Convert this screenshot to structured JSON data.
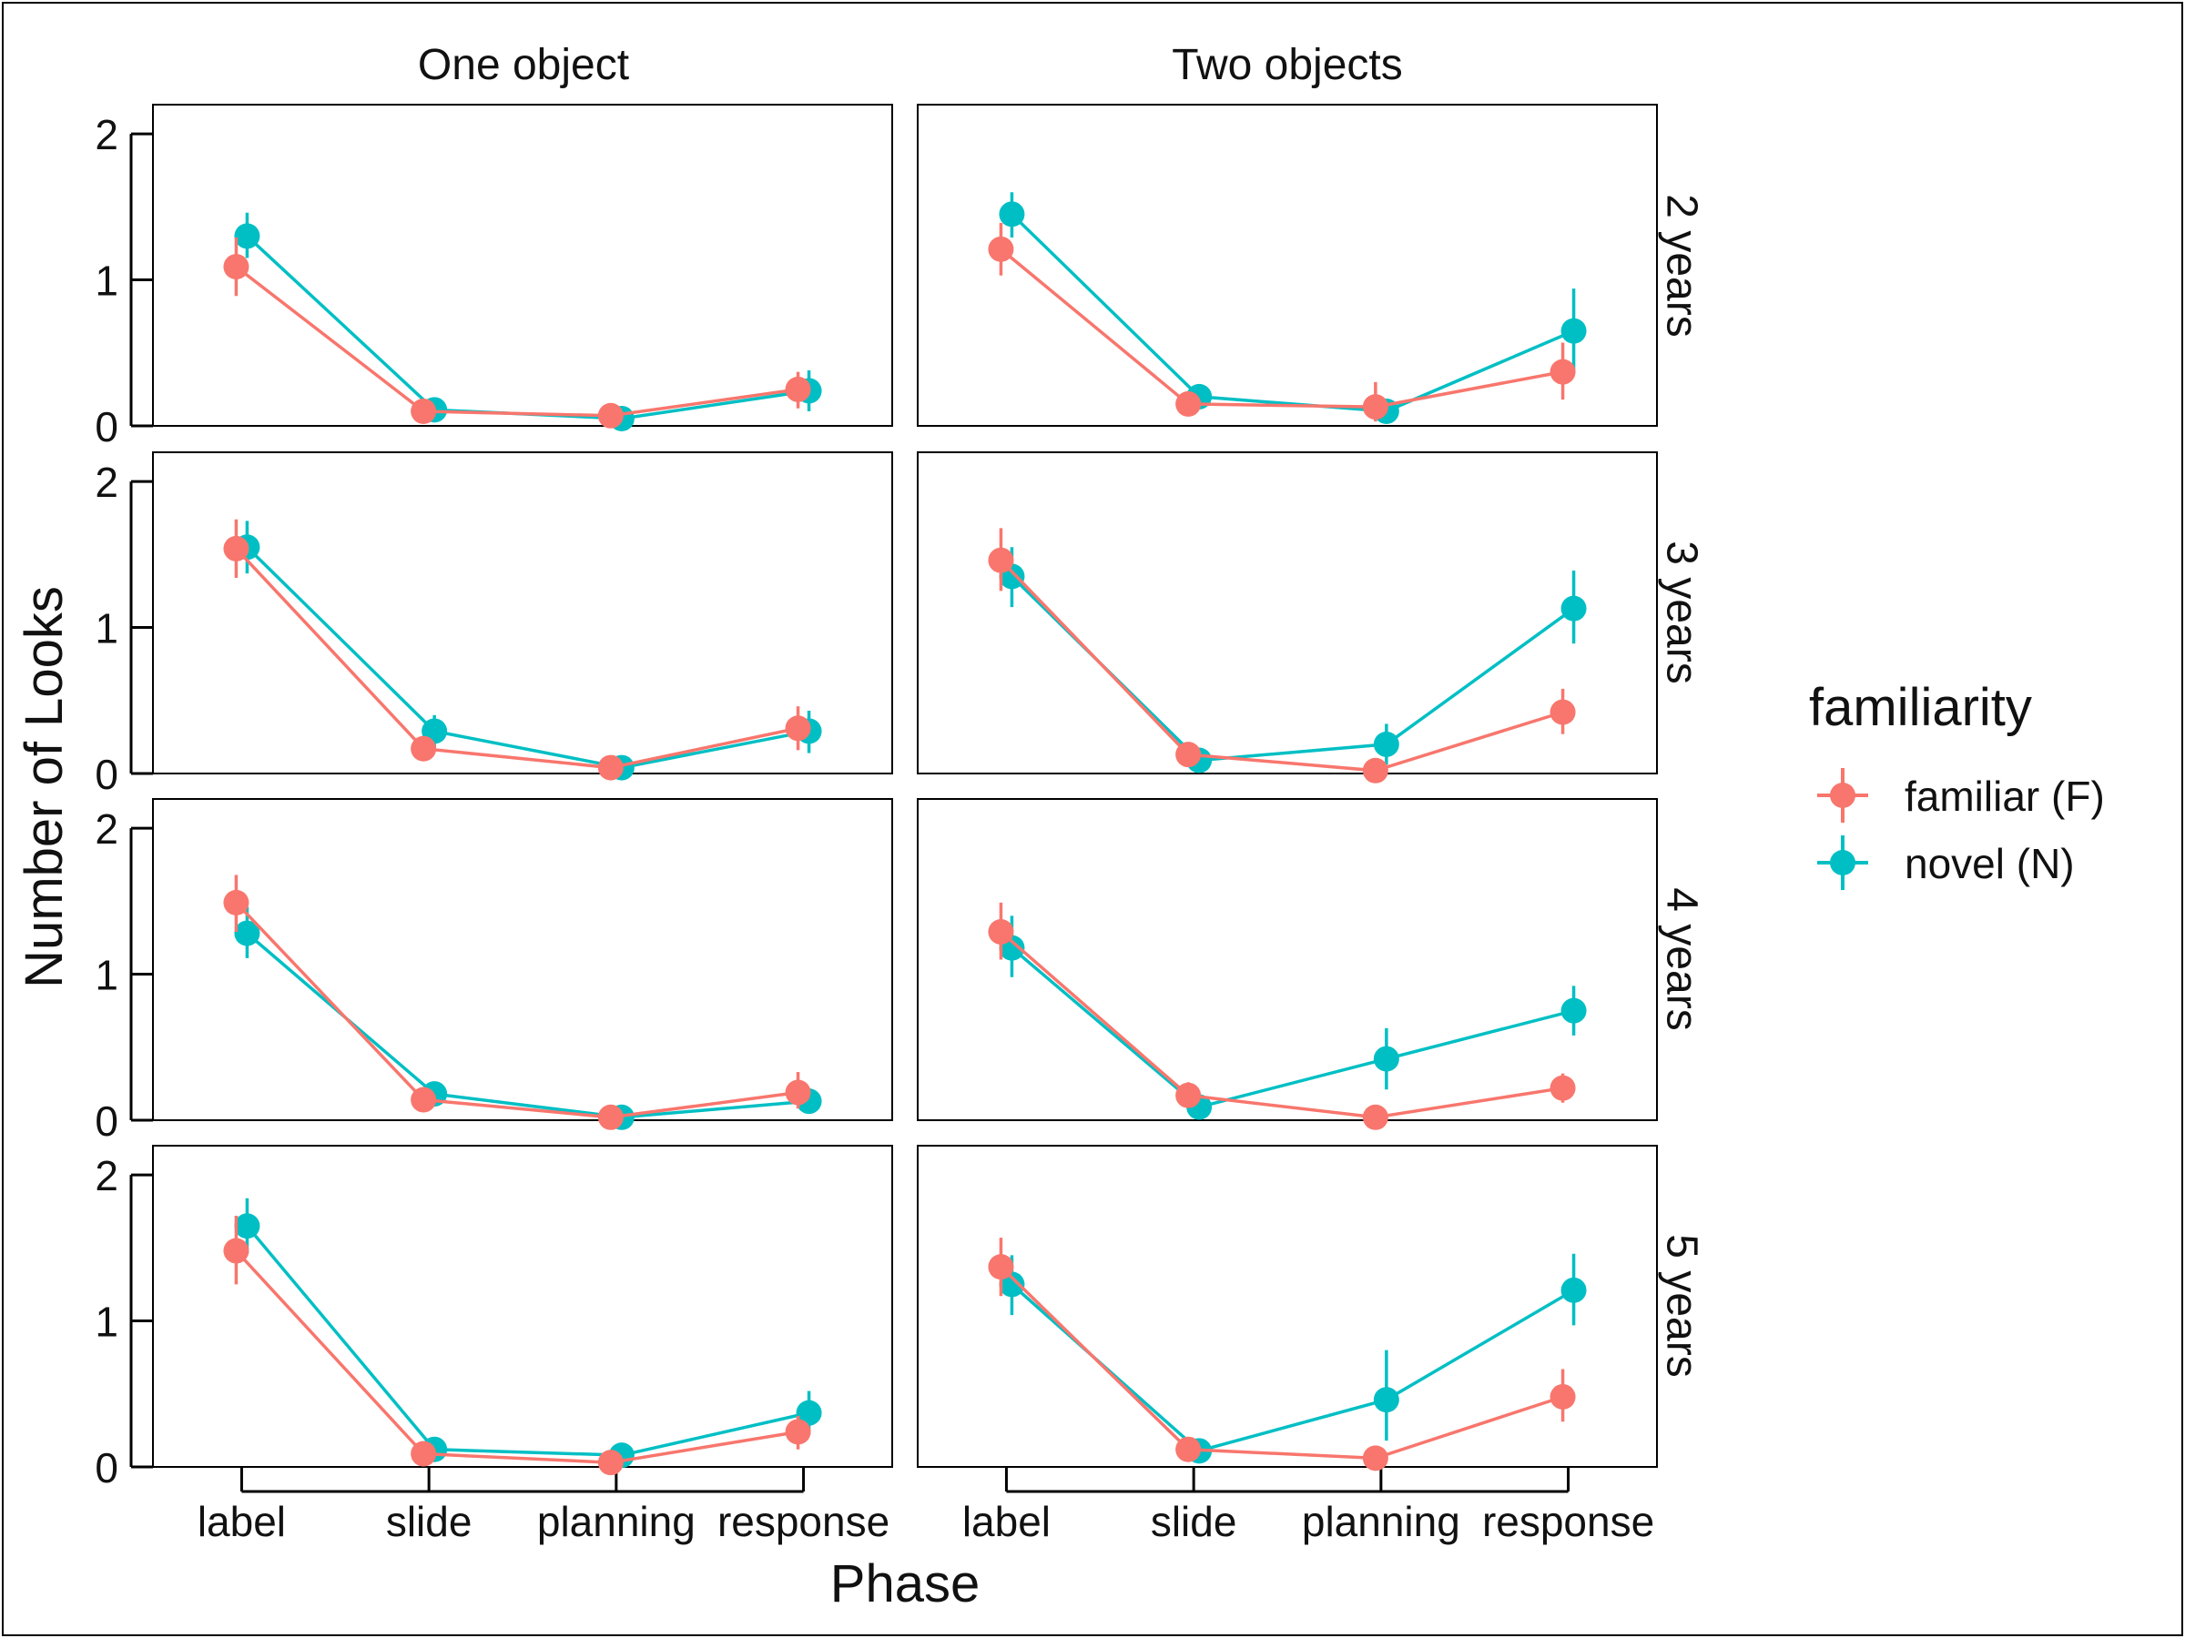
{
  "chart_data": {
    "type": "line",
    "title": "",
    "xlabel": "Phase",
    "ylabel": "Number of Looks",
    "x": [
      "label",
      "slide",
      "planning",
      "response"
    ],
    "ylim": [
      0,
      2.2
    ],
    "yticks": [
      0,
      1,
      2
    ],
    "grid": false,
    "legend": {
      "title": "familiarity",
      "placement": "right",
      "entries": [
        "familiar (F)",
        "novel (N)"
      ]
    },
    "colors": {
      "familiar (F)": "#F8766D",
      "novel (N)": "#00BFC4"
    },
    "facet_columns": [
      "One object",
      "Two objects"
    ],
    "facet_rows": [
      "2 years",
      "3 years",
      "4 years",
      "5 years"
    ],
    "panels": [
      {
        "column": "One object",
        "row": "2 years",
        "series": [
          {
            "name": "familiar (F)",
            "values": [
              1.09,
              0.1,
              0.07,
              0.25
            ],
            "err": [
              [
                0.89,
                1.29
              ],
              [
                0.05,
                0.15
              ],
              [
                0.03,
                0.11
              ],
              [
                0.12,
                0.37
              ]
            ]
          },
          {
            "name": "novel (N)",
            "values": [
              1.3,
              0.11,
              0.05,
              0.24
            ],
            "err": [
              [
                1.15,
                1.46
              ],
              [
                0.06,
                0.16
              ],
              [
                0.01,
                0.09
              ],
              [
                0.1,
                0.38
              ]
            ]
          }
        ]
      },
      {
        "column": "Two objects",
        "row": "2 years",
        "series": [
          {
            "name": "familiar (F)",
            "values": [
              1.21,
              0.15,
              0.13,
              0.37
            ],
            "err": [
              [
                1.03,
                1.39
              ],
              [
                0.1,
                0.2
              ],
              [
                0.03,
                0.3
              ],
              [
                0.18,
                0.57
              ]
            ]
          },
          {
            "name": "novel (N)",
            "values": [
              1.45,
              0.2,
              0.1,
              0.65
            ],
            "err": [
              [
                1.29,
                1.6
              ],
              [
                0.14,
                0.25
              ],
              [
                0.05,
                0.16
              ],
              [
                0.38,
                0.94
              ]
            ]
          }
        ]
      },
      {
        "column": "One object",
        "row": "3 years",
        "series": [
          {
            "name": "familiar (F)",
            "values": [
              1.54,
              0.17,
              0.04,
              0.31
            ],
            "err": [
              [
                1.34,
                1.74
              ],
              [
                0.1,
                0.23
              ],
              [
                0.01,
                0.07
              ],
              [
                0.16,
                0.46
              ]
            ]
          },
          {
            "name": "novel (N)",
            "values": [
              1.55,
              0.29,
              0.04,
              0.29
            ],
            "err": [
              [
                1.37,
                1.73
              ],
              [
                0.18,
                0.4
              ],
              [
                0.01,
                0.07
              ],
              [
                0.14,
                0.43
              ]
            ]
          }
        ]
      },
      {
        "column": "Two objects",
        "row": "3 years",
        "series": [
          {
            "name": "familiar (F)",
            "values": [
              1.46,
              0.13,
              0.02,
              0.42
            ],
            "err": [
              [
                1.25,
                1.68
              ],
              [
                0.07,
                0.19
              ],
              [
                0.0,
                0.05
              ],
              [
                0.27,
                0.58
              ]
            ]
          },
          {
            "name": "novel (N)",
            "values": [
              1.35,
              0.09,
              0.2,
              1.13
            ],
            "err": [
              [
                1.14,
                1.55
              ],
              [
                0.04,
                0.14
              ],
              [
                0.06,
                0.34
              ],
              [
                0.89,
                1.39
              ]
            ]
          }
        ]
      },
      {
        "column": "One object",
        "row": "4 years",
        "series": [
          {
            "name": "familiar (F)",
            "values": [
              1.49,
              0.14,
              0.02,
              0.19
            ],
            "err": [
              [
                1.29,
                1.68
              ],
              [
                0.08,
                0.2
              ],
              [
                0.0,
                0.05
              ],
              [
                0.08,
                0.33
              ]
            ]
          },
          {
            "name": "novel (N)",
            "values": [
              1.28,
              0.18,
              0.02,
              0.13
            ],
            "err": [
              [
                1.11,
                1.46
              ],
              [
                0.1,
                0.26
              ],
              [
                0.0,
                0.05
              ],
              [
                0.06,
                0.2
              ]
            ]
          }
        ]
      },
      {
        "column": "Two objects",
        "row": "4 years",
        "series": [
          {
            "name": "familiar (F)",
            "values": [
              1.29,
              0.17,
              0.02,
              0.22
            ],
            "err": [
              [
                1.1,
                1.49
              ],
              [
                0.1,
                0.26
              ],
              [
                0.0,
                0.05
              ],
              [
                0.12,
                0.32
              ]
            ]
          },
          {
            "name": "novel (N)",
            "values": [
              1.18,
              0.09,
              0.42,
              0.75
            ],
            "err": [
              [
                0.98,
                1.4
              ],
              [
                0.03,
                0.15
              ],
              [
                0.21,
                0.63
              ],
              [
                0.58,
                0.92
              ]
            ]
          }
        ]
      },
      {
        "column": "One object",
        "row": "5 years",
        "series": [
          {
            "name": "familiar (F)",
            "values": [
              1.48,
              0.09,
              0.03,
              0.24
            ],
            "err": [
              [
                1.25,
                1.72
              ],
              [
                0.04,
                0.14
              ],
              [
                0.0,
                0.06
              ],
              [
                0.12,
                0.35
              ]
            ]
          },
          {
            "name": "novel (N)",
            "values": [
              1.65,
              0.12,
              0.08,
              0.37
            ],
            "err": [
              [
                1.46,
                1.84
              ],
              [
                0.06,
                0.17
              ],
              [
                0.03,
                0.13
              ],
              [
                0.22,
                0.52
              ]
            ]
          }
        ]
      },
      {
        "column": "Two objects",
        "row": "5 years",
        "series": [
          {
            "name": "familiar (F)",
            "values": [
              1.37,
              0.12,
              0.06,
              0.48
            ],
            "err": [
              [
                1.17,
                1.57
              ],
              [
                0.07,
                0.18
              ],
              [
                0.02,
                0.1
              ],
              [
                0.31,
                0.67
              ]
            ]
          },
          {
            "name": "novel (N)",
            "values": [
              1.25,
              0.11,
              0.46,
              1.21
            ],
            "err": [
              [
                1.04,
                1.45
              ],
              [
                0.06,
                0.15
              ],
              [
                0.18,
                0.8
              ],
              [
                0.97,
                1.46
              ]
            ]
          }
        ]
      }
    ]
  }
}
